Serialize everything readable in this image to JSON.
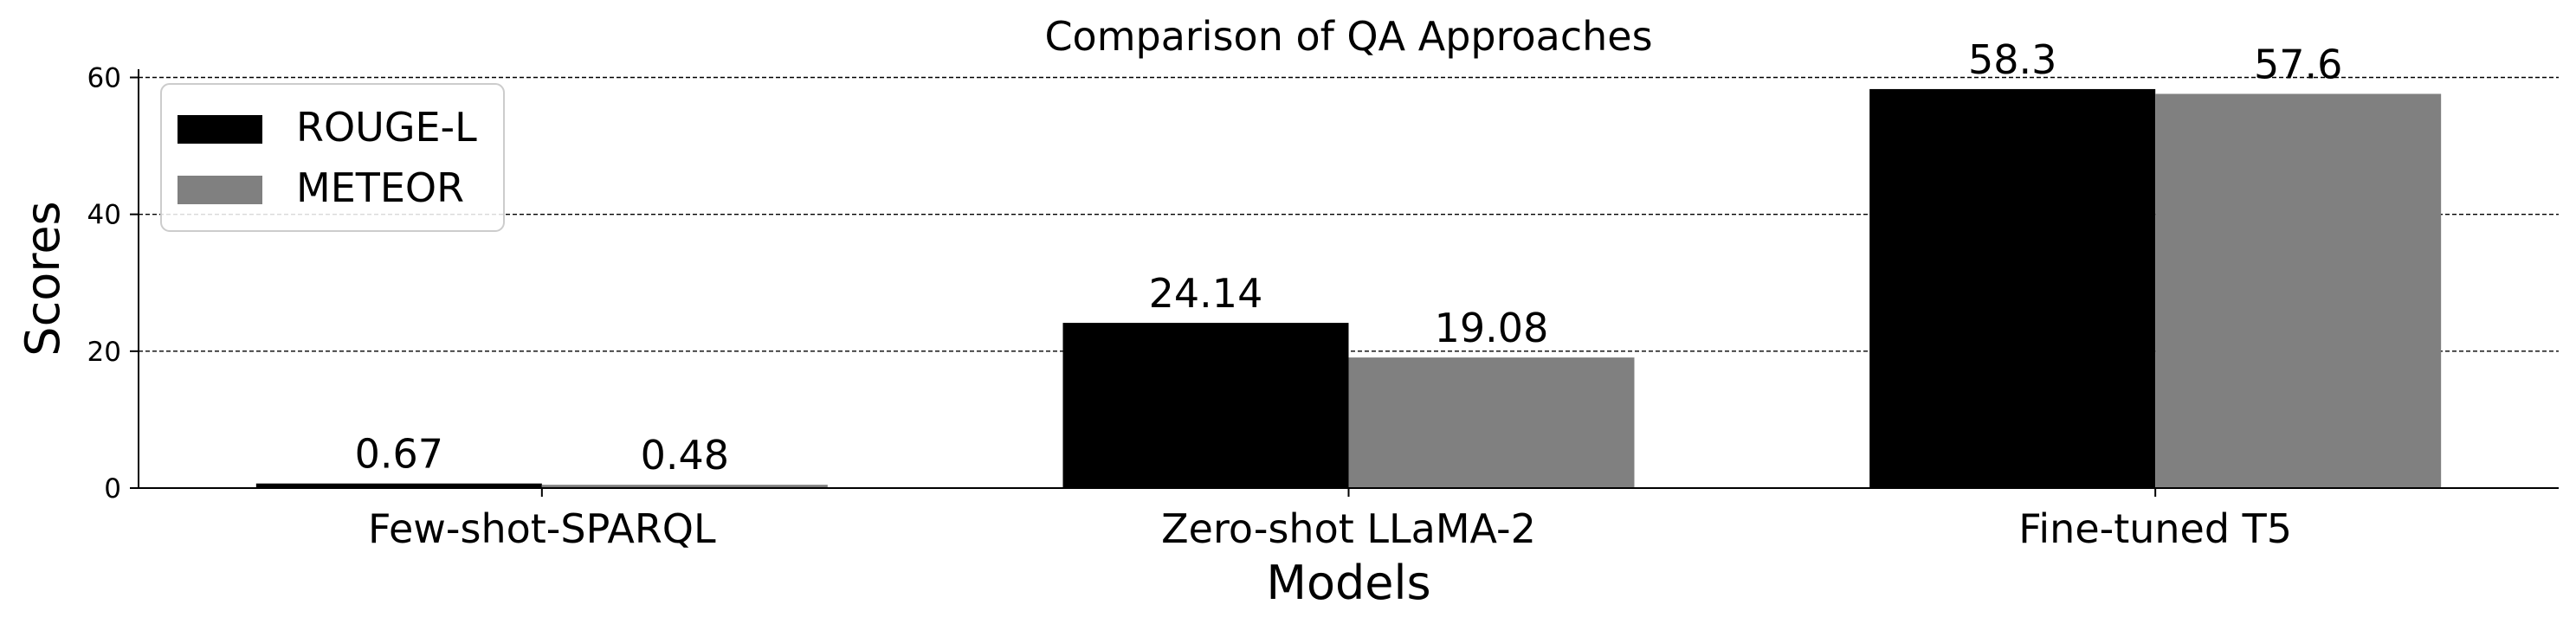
{
  "chart_data": {
    "type": "bar",
    "title": "Comparison of QA Approaches",
    "xlabel": "Models",
    "ylabel": "Scores",
    "categories": [
      "Few-shot-SPARQL",
      "Zero-shot LLaMA-2",
      "Fine-tuned T5"
    ],
    "series": [
      {
        "name": "ROUGE-L",
        "color": "#000000",
        "values": [
          0.67,
          24.14,
          58.3
        ],
        "labels": [
          "0.67",
          "24.14",
          "58.3"
        ]
      },
      {
        "name": "METEOR",
        "color": "#808080",
        "values": [
          0.48,
          19.08,
          57.6
        ],
        "labels": [
          "0.48",
          "19.08",
          "57.6"
        ]
      }
    ],
    "ylim": [
      0,
      61.2
    ],
    "yticks": [
      "0",
      "20",
      "40",
      "60"
    ],
    "grid": "horizontal dashed",
    "legend_position": "top-left"
  }
}
